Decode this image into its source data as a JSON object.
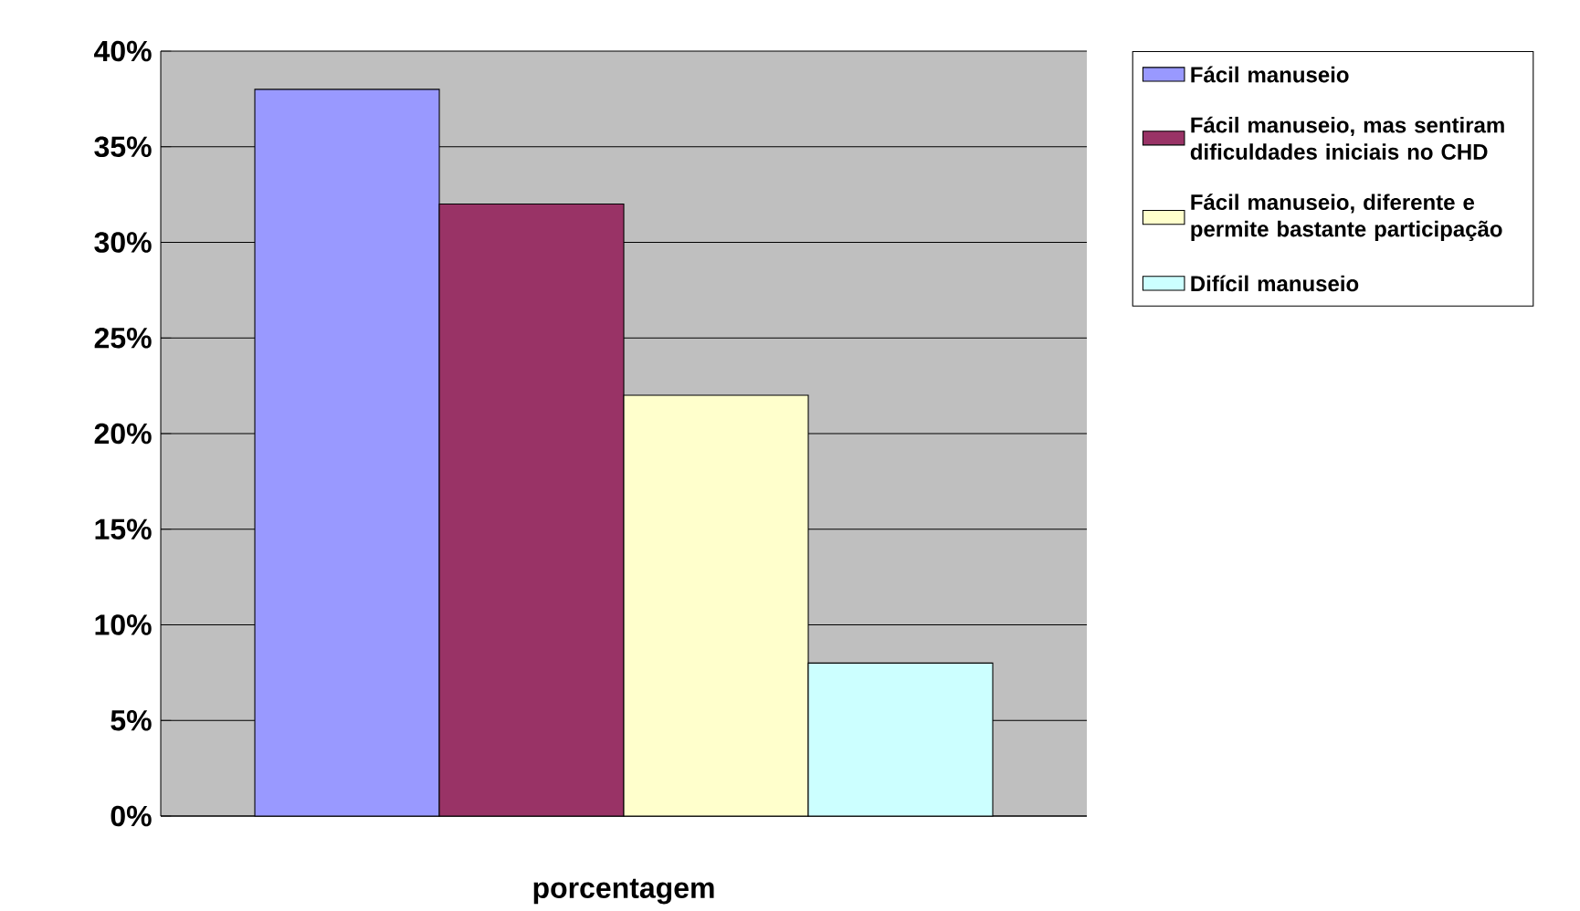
{
  "chart_data": {
    "type": "bar",
    "categories": [
      "porcentagem"
    ],
    "series": [
      {
        "name": "Fácil manuseio",
        "color": "#9999ff",
        "values": [
          38
        ]
      },
      {
        "name": "Fácil manuseio, mas sentiram dificuldades iniciais no CHD",
        "color": "#993366",
        "values": [
          32
        ]
      },
      {
        "name": "Fácil manuseio, diferente e permite bastante participação",
        "color": "#ffffcc",
        "values": [
          22
        ]
      },
      {
        "name": "Difícil manuseio",
        "color": "#ccffff",
        "values": [
          8
        ]
      }
    ],
    "ylim": [
      0,
      40
    ],
    "yticks": [
      {
        "value": 0,
        "label": "0%"
      },
      {
        "value": 5,
        "label": "5%"
      },
      {
        "value": 10,
        "label": "10%"
      },
      {
        "value": 15,
        "label": "15%"
      },
      {
        "value": 20,
        "label": "20%"
      },
      {
        "value": 25,
        "label": "25%"
      },
      {
        "value": 30,
        "label": "30%"
      },
      {
        "value": 35,
        "label": "35%"
      },
      {
        "value": 40,
        "label": "40%"
      }
    ],
    "grid": "y",
    "legend": "right"
  }
}
